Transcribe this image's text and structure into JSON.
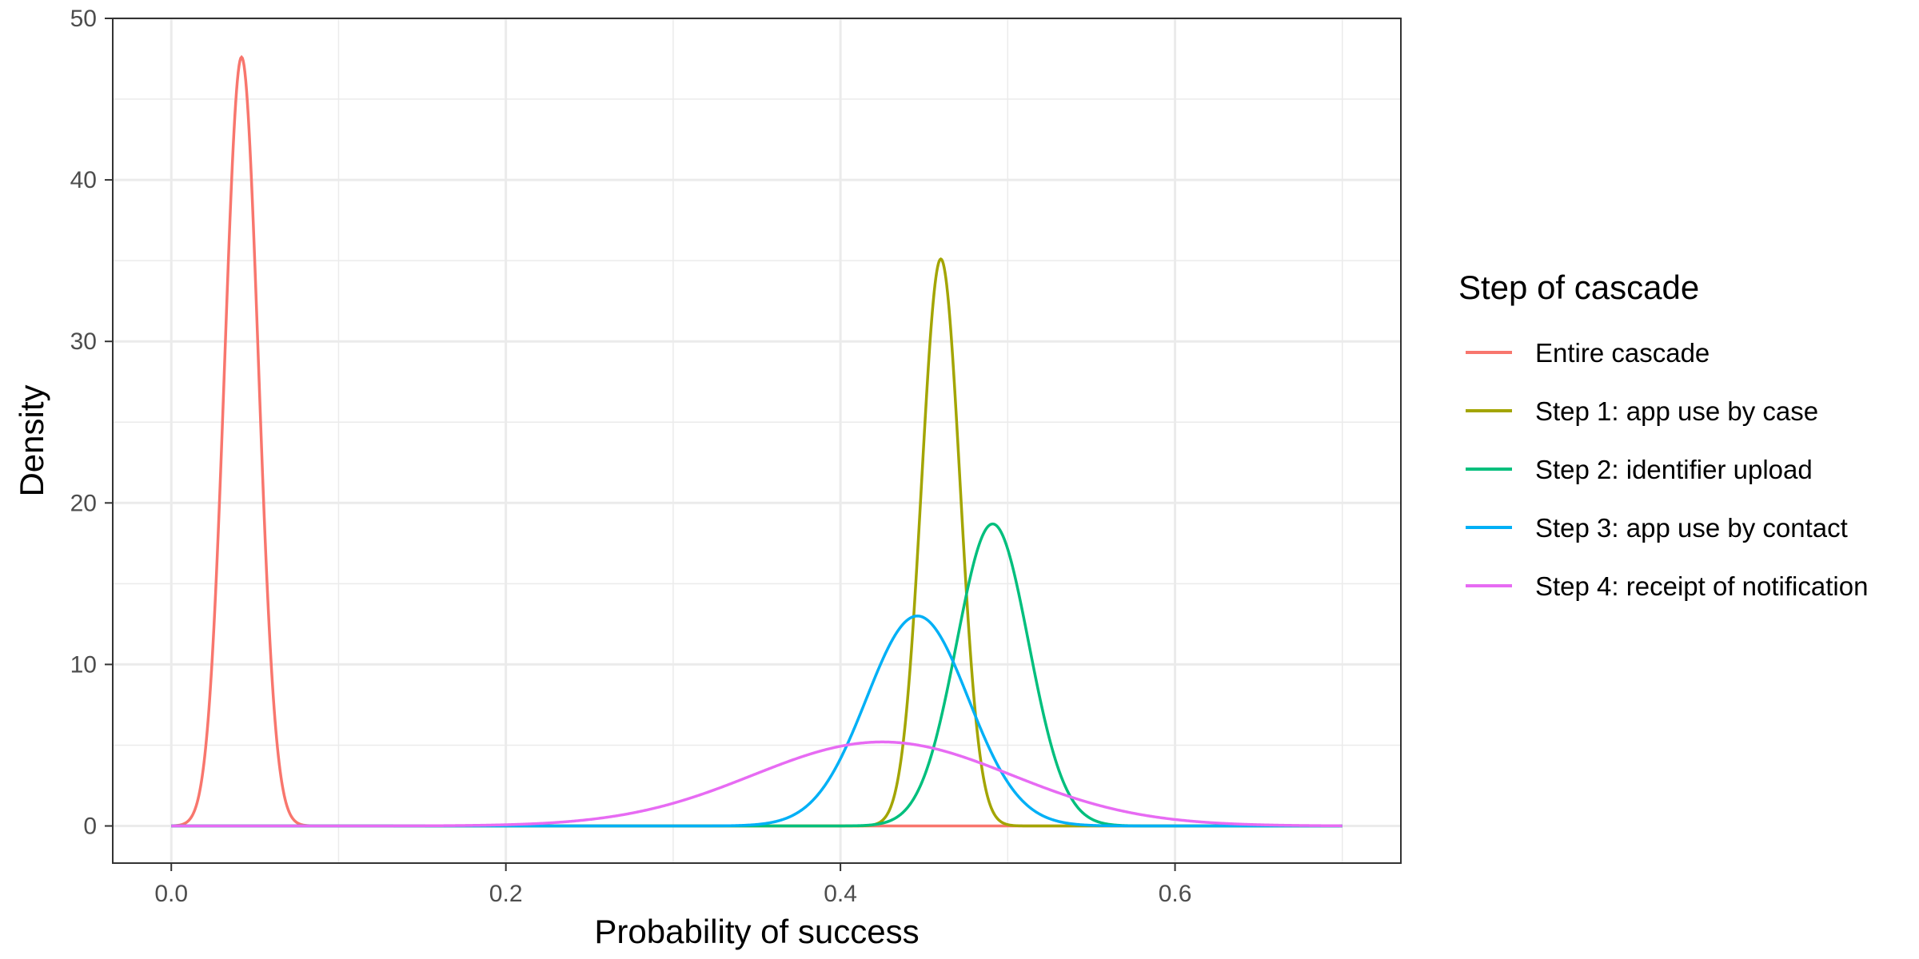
{
  "chart_data": {
    "type": "line",
    "title": "",
    "xlabel": "Probability of success",
    "ylabel": "Density",
    "xlim": [
      -0.035,
      0.735
    ],
    "ylim": [
      -2.3,
      50
    ],
    "x_ticks": [
      0.0,
      0.2,
      0.4,
      0.6
    ],
    "x_tick_labels": [
      "0.0",
      "0.2",
      "0.4",
      "0.6"
    ],
    "y_ticks": [
      0,
      10,
      20,
      30,
      40,
      50
    ],
    "y_tick_labels": [
      "0",
      "10",
      "20",
      "30",
      "40",
      "50"
    ],
    "grid": true,
    "legend": {
      "title": "Step of cascade",
      "position": "right"
    },
    "series": [
      {
        "name": "Entire cascade",
        "color": "#F8766D",
        "mean": 0.042,
        "peak": 47.6,
        "x": [
          0.0,
          0.02,
          0.03,
          0.042,
          0.055,
          0.065,
          0.08,
          0.7
        ],
        "values": [
          0,
          2.0,
          22.0,
          47.6,
          21.0,
          5.0,
          0.1,
          0
        ]
      },
      {
        "name": "Step 1: app use by case",
        "color": "#A3A500",
        "mean": 0.46,
        "peak": 35.1,
        "x": [
          0.0,
          0.42,
          0.44,
          0.45,
          0.46,
          0.47,
          0.48,
          0.5,
          0.7
        ],
        "values": [
          0,
          0.3,
          6.5,
          22.5,
          35.1,
          22.5,
          6.5,
          0.3,
          0
        ]
      },
      {
        "name": "Step 2: identifier upload",
        "color": "#00BF7D",
        "mean": 0.491,
        "peak": 18.7,
        "x": [
          0.0,
          0.43,
          0.45,
          0.47,
          0.491,
          0.51,
          0.53,
          0.56,
          0.7
        ],
        "values": [
          0,
          0.4,
          3.2,
          11.0,
          18.7,
          12.0,
          3.8,
          0.2,
          0
        ]
      },
      {
        "name": "Step 3: app use by contact",
        "color": "#00B0F6",
        "mean": 0.446,
        "peak": 13.0,
        "x": [
          0.0,
          0.35,
          0.39,
          0.42,
          0.446,
          0.47,
          0.5,
          0.54,
          0.7
        ],
        "values": [
          0,
          0.2,
          2.4,
          8.5,
          13.0,
          9.0,
          2.7,
          0.2,
          0
        ]
      },
      {
        "name": "Step 4: receipt of notification",
        "color": "#E76BF3",
        "mean": 0.425,
        "peak": 5.2,
        "x": [
          0.0,
          0.2,
          0.3,
          0.35,
          0.425,
          0.5,
          0.55,
          0.6,
          0.7
        ],
        "values": [
          0,
          0.05,
          1.3,
          3.0,
          5.2,
          3.3,
          1.6,
          0.55,
          0.01
        ]
      }
    ]
  }
}
